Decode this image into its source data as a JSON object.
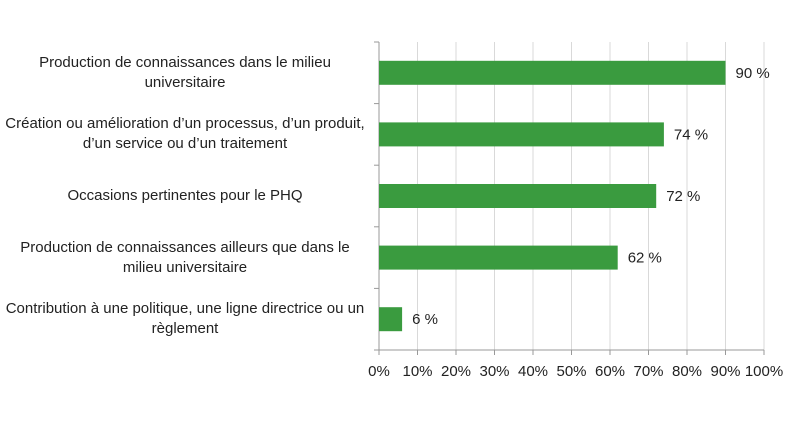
{
  "chart_data": {
    "type": "bar",
    "orientation": "horizontal",
    "categories": [
      "Production de connaissances dans le milieu universitaire",
      "Création ou amélioration d’un processus, d’un produit, d’un service ou d’un traitement",
      "Occasions pertinentes pour le PHQ",
      "Production de connaissances ailleurs que dans le milieu universitaire",
      "Contribution à une politique, une ligne directrice ou un règlement"
    ],
    "values": [
      90,
      74,
      72,
      62,
      6
    ],
    "value_labels": [
      "90 %",
      "74 %",
      "72 %",
      "62 %",
      "6 %"
    ],
    "color": "#3a9b3f",
    "xlim": [
      0,
      100
    ],
    "xticks": [
      {
        "value": 0,
        "label": "0%"
      },
      {
        "value": 10,
        "label": "10%"
      },
      {
        "value": 20,
        "label": "20%"
      },
      {
        "value": 30,
        "label": "30%"
      },
      {
        "value": 40,
        "label": "40%"
      },
      {
        "value": 50,
        "label": "50%"
      },
      {
        "value": 60,
        "label": "60%"
      },
      {
        "value": 70,
        "label": "70%"
      },
      {
        "value": 80,
        "label": "80%"
      },
      {
        "value": 90,
        "label": "90%"
      },
      {
        "value": 100,
        "label": "100%"
      }
    ],
    "grid": true
  }
}
